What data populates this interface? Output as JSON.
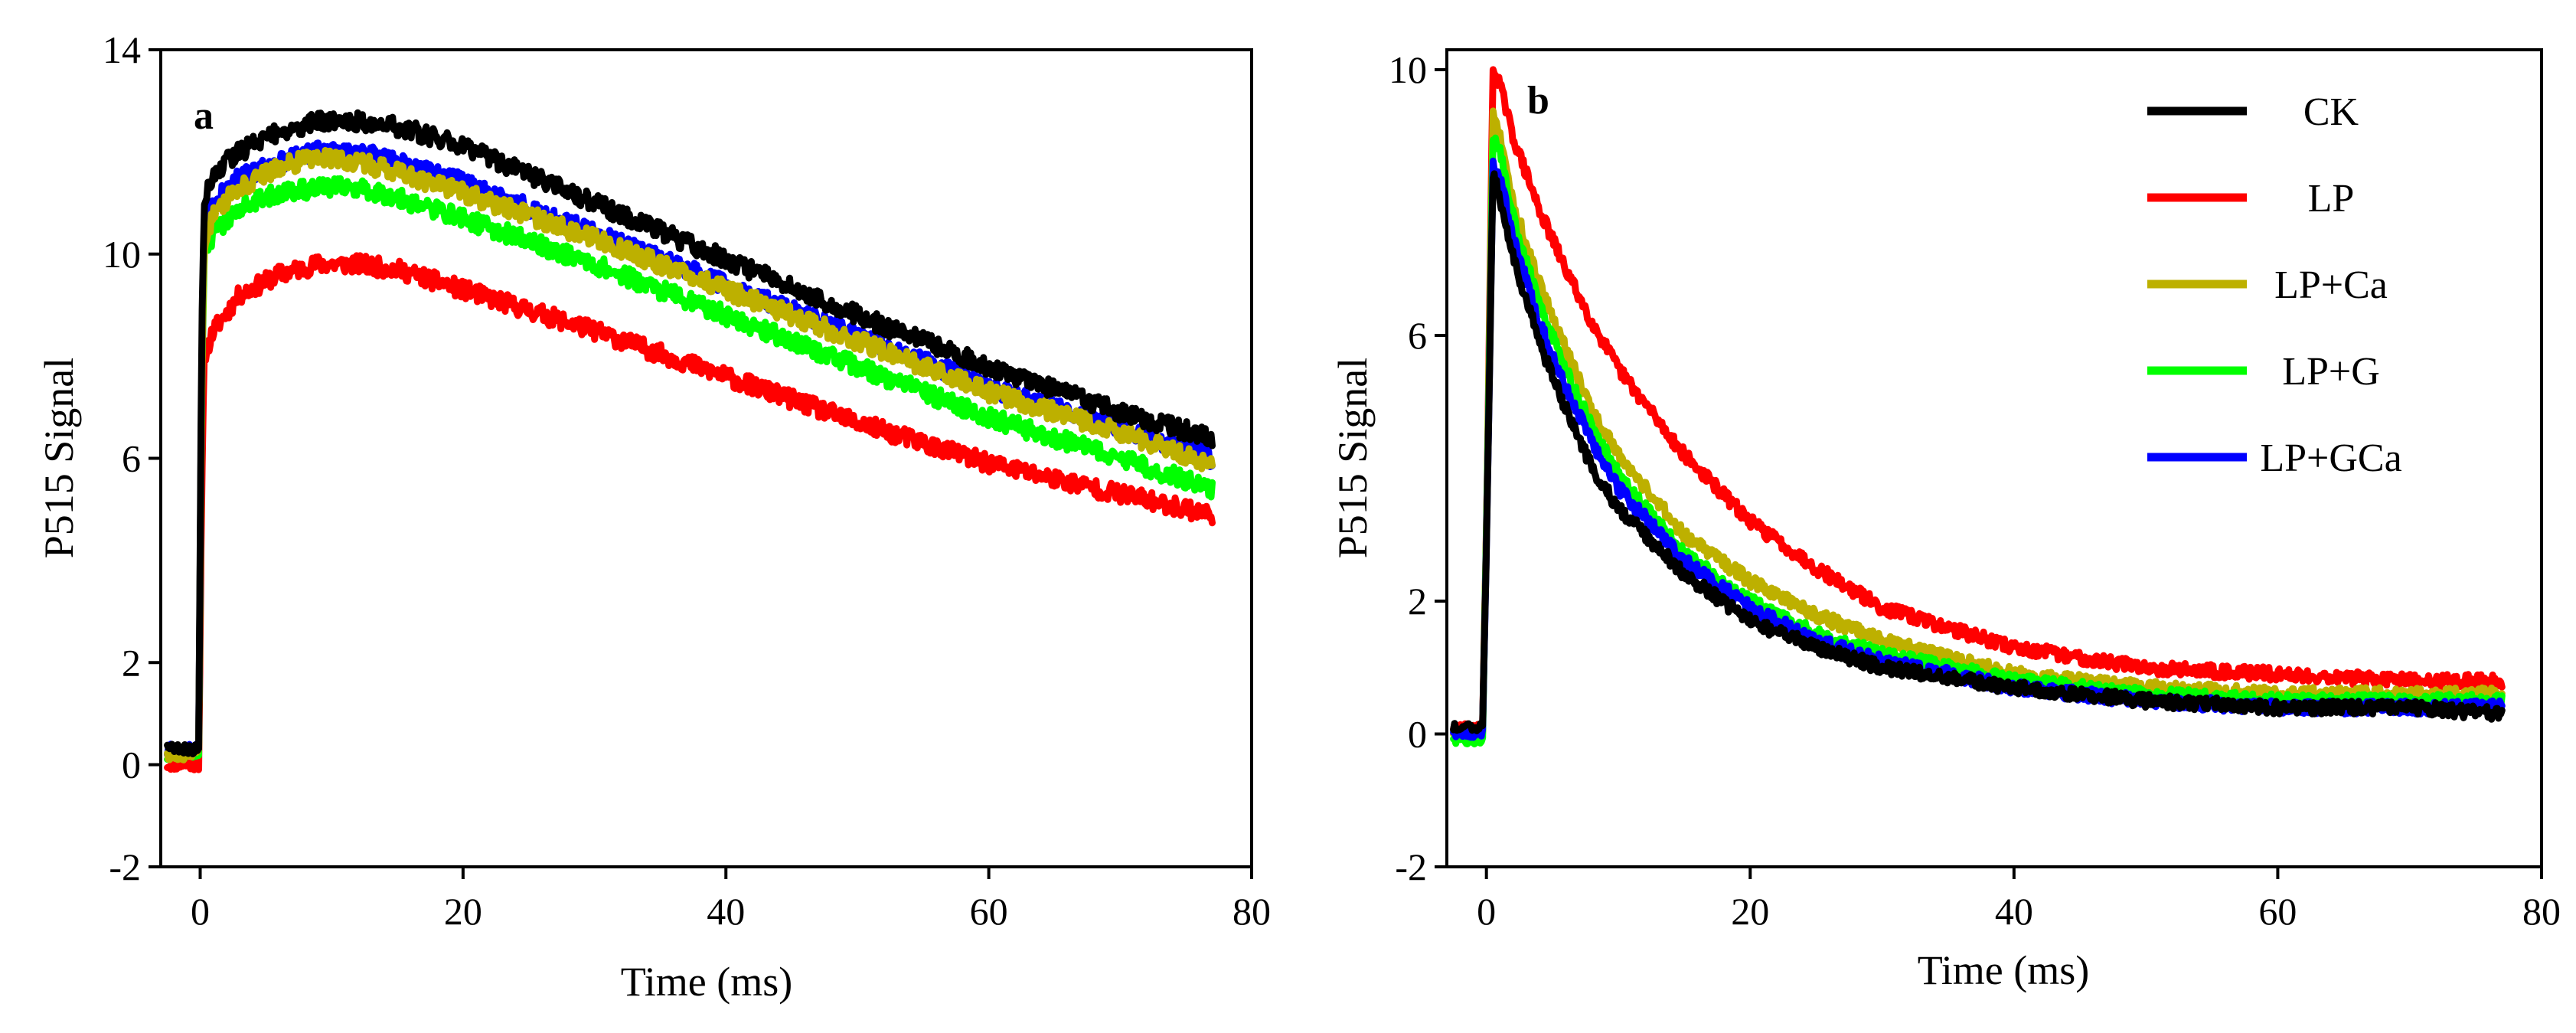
{
  "chart_data": [
    {
      "type": "line",
      "panel": "a",
      "xlabel": "Time (ms)",
      "ylabel": "P515 Signal",
      "xlim": [
        -3,
        80
      ],
      "ylim": [
        -2,
        14
      ],
      "x_ticks": [
        0,
        20,
        40,
        60,
        80
      ],
      "y_ticks": [
        -2,
        0,
        2,
        6,
        10,
        14
      ],
      "y_tick_labels": [
        "-2",
        "0",
        "2",
        "6",
        "10",
        "14"
      ],
      "grid": false,
      "series": [
        {
          "name": "LP",
          "color": "#ff0000",
          "noise": 0.18,
          "x": [
            -2.5,
            -0.1,
            0.1,
            0.3,
            1,
            3,
            6,
            9,
            12,
            15,
            20,
            30,
            40,
            50,
            60,
            70,
            77
          ],
          "y": [
            0.0,
            0.0,
            5.0,
            8.0,
            8.5,
            9.2,
            9.6,
            9.8,
            9.8,
            9.7,
            9.3,
            8.5,
            7.6,
            6.7,
            5.9,
            5.3,
            4.9
          ]
        },
        {
          "name": "LP+G",
          "color": "#00ff00",
          "noise": 0.18,
          "x": [
            -2.5,
            -0.1,
            0.1,
            0.3,
            1,
            3,
            6,
            9,
            12,
            15,
            20,
            30,
            40,
            50,
            60,
            70,
            77
          ],
          "y": [
            0.2,
            0.2,
            7.0,
            10.0,
            10.4,
            10.9,
            11.2,
            11.3,
            11.3,
            11.1,
            10.7,
            9.8,
            8.8,
            7.8,
            6.8,
            6.0,
            5.4
          ]
        },
        {
          "name": "LP+GCa",
          "color": "#0000ff",
          "noise": 0.18,
          "x": [
            -2.5,
            -0.1,
            0.1,
            0.3,
            1,
            3,
            6,
            9,
            12,
            15,
            20,
            30,
            40,
            50,
            60,
            70,
            77
          ],
          "y": [
            0.3,
            0.3,
            7.5,
            10.5,
            11.0,
            11.5,
            11.8,
            12.0,
            12.0,
            11.8,
            11.4,
            10.4,
            9.4,
            8.4,
            7.4,
            6.6,
            6.0
          ]
        },
        {
          "name": "LP+Ca",
          "color": "#bdb000",
          "noise": 0.18,
          "x": [
            -2.5,
            -0.1,
            0.1,
            0.3,
            1,
            3,
            6,
            9,
            12,
            15,
            20,
            30,
            40,
            50,
            60,
            70,
            77
          ],
          "y": [
            0.2,
            0.2,
            7.5,
            10.2,
            10.8,
            11.3,
            11.7,
            11.9,
            11.8,
            11.6,
            11.2,
            10.3,
            9.3,
            8.3,
            7.3,
            6.5,
            5.9
          ]
        },
        {
          "name": "CK",
          "color": "#000000",
          "noise": 0.18,
          "x": [
            -2.5,
            -0.1,
            0.1,
            0.3,
            1,
            3,
            6,
            9,
            12,
            15,
            20,
            30,
            40,
            50,
            60,
            70,
            77
          ],
          "y": [
            0.3,
            0.3,
            8.0,
            11.0,
            11.6,
            12.0,
            12.4,
            12.6,
            12.6,
            12.5,
            12.1,
            11.0,
            9.9,
            8.8,
            7.8,
            6.9,
            6.4
          ]
        }
      ]
    },
    {
      "type": "line",
      "panel": "b",
      "xlabel": "Time (ms)",
      "ylabel": "P515 Signal",
      "xlim": [
        -3,
        80
      ],
      "ylim": [
        -2,
        10.3
      ],
      "x_ticks": [
        0,
        20,
        40,
        60,
        80
      ],
      "y_ticks": [
        -2,
        0,
        2,
        6,
        10
      ],
      "y_tick_labels": [
        "-2",
        "0",
        "2",
        "6",
        "10"
      ],
      "grid": false,
      "legend": "top-right",
      "series": [
        {
          "name": "LP",
          "color": "#ff0000",
          "noise": 0.1,
          "x": [
            -2.5,
            -0.3,
            0,
            0.5,
            1,
            2,
            4,
            6,
            8,
            10,
            15,
            20,
            25,
            30,
            40,
            50,
            60,
            70,
            77
          ],
          "y": [
            0.1,
            0.1,
            3.0,
            10.0,
            9.8,
            9.0,
            7.9,
            7.0,
            6.2,
            5.5,
            4.2,
            3.2,
            2.5,
            1.9,
            1.3,
            1.0,
            0.9,
            0.8,
            0.8
          ]
        },
        {
          "name": "LP+Ca",
          "color": "#bdb000",
          "noise": 0.1,
          "x": [
            -2.5,
            -0.3,
            0,
            0.5,
            1,
            2,
            4,
            6,
            8,
            10,
            15,
            20,
            25,
            30,
            40,
            50,
            60,
            70,
            77
          ],
          "y": [
            0.0,
            0.0,
            3.0,
            9.3,
            9.0,
            8.0,
            6.8,
            5.8,
            4.9,
            4.2,
            3.0,
            2.3,
            1.8,
            1.4,
            0.9,
            0.7,
            0.6,
            0.6,
            0.6
          ]
        },
        {
          "name": "LP+G",
          "color": "#00ff00",
          "noise": 0.1,
          "x": [
            -2.5,
            -0.3,
            0,
            0.5,
            1,
            2,
            4,
            6,
            8,
            10,
            15,
            20,
            25,
            30,
            40,
            50,
            60,
            70,
            77
          ],
          "y": [
            -0.1,
            -0.1,
            3.0,
            9.0,
            8.8,
            7.8,
            6.5,
            5.5,
            4.6,
            3.9,
            2.7,
            2.0,
            1.5,
            1.2,
            0.8,
            0.6,
            0.5,
            0.5,
            0.5
          ]
        },
        {
          "name": "LP+GCa",
          "color": "#0000ff",
          "noise": 0.1,
          "x": [
            -2.5,
            -0.3,
            0,
            0.5,
            1,
            2,
            4,
            6,
            8,
            10,
            15,
            20,
            25,
            30,
            40,
            50,
            60,
            70,
            77
          ],
          "y": [
            0.0,
            0.0,
            2.8,
            8.6,
            8.4,
            7.5,
            6.2,
            5.2,
            4.4,
            3.7,
            2.6,
            1.9,
            1.4,
            1.1,
            0.7,
            0.5,
            0.4,
            0.4,
            0.4
          ]
        },
        {
          "name": "CK",
          "color": "#000000",
          "noise": 0.1,
          "x": [
            -2.5,
            -0.3,
            0,
            0.5,
            1,
            2,
            4,
            6,
            8,
            10,
            15,
            20,
            25,
            30,
            40,
            50,
            60,
            70,
            77
          ],
          "y": [
            0.1,
            0.1,
            2.8,
            8.4,
            8.1,
            7.2,
            5.9,
            4.9,
            4.0,
            3.4,
            2.4,
            1.7,
            1.3,
            1.0,
            0.7,
            0.5,
            0.4,
            0.4,
            0.3
          ]
        }
      ],
      "legend_entries": [
        {
          "label": "CK",
          "color": "#000000"
        },
        {
          "label": "LP",
          "color": "#ff0000"
        },
        {
          "label": "LP+Ca",
          "color": "#bdb000"
        },
        {
          "label": "LP+G",
          "color": "#00ff00"
        },
        {
          "label": "LP+GCa",
          "color": "#0000ff"
        }
      ]
    }
  ]
}
